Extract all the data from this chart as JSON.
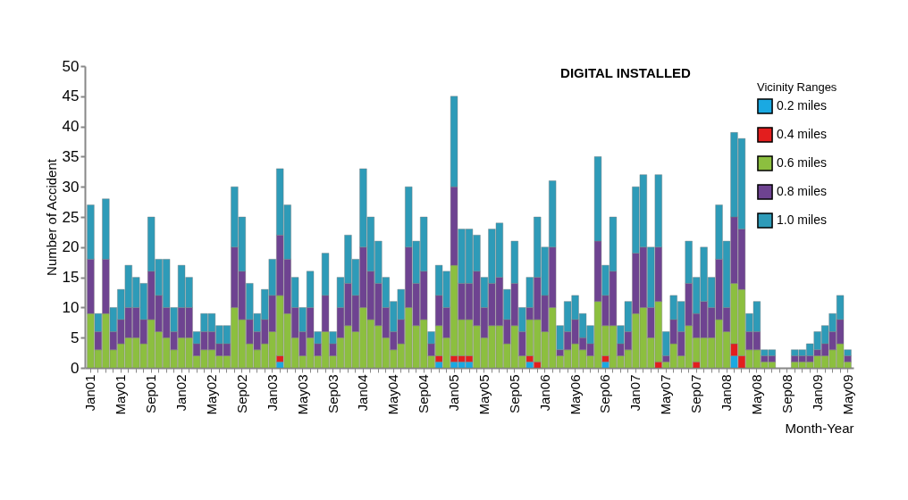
{
  "chart_data": {
    "type": "bar",
    "stacked": true,
    "xlabel": "Month-Year",
    "ylabel": "Number of Accident",
    "legend_title": "Vicinity Ranges",
    "annotations": [
      "DIGITAL INSTALLED"
    ],
    "categories": [
      "Jan01",
      null,
      null,
      null,
      "May01",
      null,
      null,
      null,
      "Sep01",
      null,
      null,
      null,
      "Jan02",
      null,
      null,
      null,
      "May02",
      null,
      null,
      null,
      "Sep02",
      null,
      null,
      null,
      "Jan03",
      null,
      null,
      null,
      "May03",
      null,
      null,
      null,
      "Sep03",
      null,
      null,
      null,
      "Jan04",
      null,
      null,
      null,
      "May04",
      null,
      null,
      null,
      "Sep04",
      null,
      null,
      null,
      "Jan05",
      null,
      null,
      null,
      "May05",
      null,
      null,
      null,
      "Sep05",
      null,
      null,
      null,
      "Jan06",
      null,
      null,
      null,
      "May06",
      null,
      null,
      null,
      "Sep06",
      null,
      null,
      null,
      "Jan07",
      null,
      null,
      null,
      "May07",
      null,
      null,
      null,
      "Sep07",
      null,
      null,
      null,
      "Jan08",
      null,
      null,
      null,
      "May08",
      null,
      null,
      null,
      "Sep08",
      null,
      null,
      null,
      "Jan09",
      null,
      null,
      null,
      "May09"
    ],
    "series": [
      {
        "name": "0.2 miles",
        "color": "#1aa9e2",
        "values": [
          null,
          null,
          null,
          null,
          null,
          null,
          null,
          null,
          null,
          null,
          null,
          null,
          null,
          null,
          null,
          null,
          null,
          null,
          null,
          null,
          null,
          null,
          null,
          null,
          null,
          1,
          null,
          null,
          null,
          null,
          null,
          null,
          null,
          null,
          null,
          null,
          null,
          null,
          null,
          null,
          null,
          null,
          null,
          null,
          null,
          null,
          1,
          null,
          1,
          1,
          1,
          null,
          null,
          null,
          null,
          null,
          null,
          null,
          1,
          null,
          null,
          null,
          null,
          null,
          null,
          null,
          null,
          null,
          1,
          null,
          null,
          null,
          null,
          null,
          null,
          null,
          null,
          null,
          null,
          null,
          null,
          null,
          null,
          null,
          null,
          2,
          null,
          null,
          null,
          null,
          null,
          null,
          null,
          null,
          null,
          null,
          null,
          null,
          null,
          null,
          null
        ]
      },
      {
        "name": "0.4 miles",
        "color": "#e31e1e",
        "values": [
          null,
          null,
          null,
          null,
          null,
          null,
          null,
          null,
          null,
          null,
          null,
          null,
          null,
          null,
          null,
          null,
          null,
          null,
          null,
          null,
          null,
          null,
          null,
          null,
          null,
          1,
          null,
          null,
          null,
          null,
          null,
          null,
          null,
          null,
          null,
          null,
          null,
          null,
          null,
          null,
          null,
          null,
          null,
          null,
          null,
          null,
          1,
          null,
          1,
          1,
          1,
          null,
          null,
          null,
          null,
          null,
          null,
          null,
          1,
          1,
          null,
          null,
          null,
          null,
          null,
          null,
          null,
          null,
          1,
          null,
          null,
          null,
          null,
          null,
          null,
          1,
          null,
          null,
          null,
          null,
          1,
          null,
          null,
          null,
          null,
          2,
          2,
          null,
          null,
          null,
          null,
          null,
          null,
          null,
          null,
          null,
          null,
          null,
          null,
          null,
          null
        ]
      },
      {
        "name": "0.6 miles",
        "color": "#8cbf3f",
        "values": [
          9,
          3,
          9,
          3,
          4,
          5,
          5,
          4,
          8,
          6,
          5,
          3,
          5,
          5,
          2,
          3,
          3,
          2,
          2,
          10,
          8,
          4,
          3,
          4,
          6,
          10,
          9,
          5,
          2,
          5,
          2,
          6,
          2,
          5,
          7,
          6,
          10,
          8,
          7,
          5,
          3,
          4,
          10,
          7,
          8,
          2,
          5,
          5,
          15,
          6,
          6,
          7,
          5,
          7,
          7,
          4,
          7,
          2,
          6,
          7,
          6,
          10,
          2,
          3,
          4,
          3,
          2,
          11,
          5,
          7,
          2,
          3,
          9,
          10,
          5,
          10,
          1,
          4,
          2,
          7,
          4,
          5,
          5,
          8,
          6,
          10,
          11,
          3,
          3,
          1,
          1,
          null,
          null,
          1,
          1,
          1,
          2,
          2,
          3,
          4,
          1
        ]
      },
      {
        "name": "0.8 miles",
        "color": "#6e4391",
        "values": [
          9,
          3,
          9,
          3,
          4,
          5,
          5,
          4,
          8,
          6,
          5,
          3,
          5,
          5,
          2,
          3,
          3,
          2,
          2,
          10,
          8,
          4,
          3,
          4,
          6,
          10,
          9,
          5,
          4,
          5,
          2,
          6,
          2,
          5,
          7,
          6,
          10,
          8,
          7,
          5,
          3,
          4,
          10,
          7,
          8,
          2,
          5,
          5,
          13,
          6,
          6,
          9,
          5,
          7,
          8,
          4,
          7,
          4,
          2,
          7,
          6,
          10,
          1,
          3,
          4,
          2,
          2,
          10,
          5,
          9,
          2,
          3,
          10,
          10,
          5,
          9,
          1,
          4,
          4,
          7,
          4,
          6,
          5,
          10,
          4,
          11,
          10,
          3,
          3,
          1,
          1,
          null,
          null,
          1,
          1,
          1,
          1,
          2,
          3,
          4,
          1
        ]
      },
      {
        "name": "1.0 miles",
        "color": "#2e9bb8",
        "values": [
          9,
          3,
          10,
          4,
          5,
          7,
          5,
          6,
          9,
          6,
          8,
          4,
          7,
          5,
          2,
          3,
          3,
          3,
          3,
          10,
          9,
          6,
          3,
          5,
          6,
          11,
          9,
          5,
          4,
          6,
          2,
          7,
          2,
          5,
          8,
          6,
          13,
          9,
          7,
          5,
          5,
          5,
          10,
          7,
          9,
          2,
          5,
          6,
          15,
          9,
          9,
          6,
          5,
          9,
          9,
          5,
          7,
          4,
          5,
          10,
          8,
          11,
          4,
          5,
          4,
          4,
          3,
          14,
          5,
          9,
          3,
          5,
          11,
          12,
          10,
          12,
          4,
          4,
          5,
          7,
          6,
          9,
          5,
          9,
          11,
          14,
          15,
          3,
          5,
          1,
          1,
          null,
          null,
          1,
          1,
          2,
          3,
          3,
          3,
          4,
          1
        ]
      }
    ],
    "ylim": [
      0,
      50
    ],
    "yticks": [
      0,
      5,
      10,
      15,
      20,
      25,
      30,
      35,
      40,
      45,
      50
    ],
    "grid": false,
    "legend": "top right"
  }
}
